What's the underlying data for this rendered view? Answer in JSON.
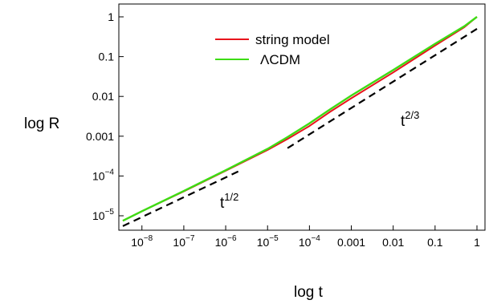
{
  "chart_data": {
    "type": "line",
    "title": "",
    "xlabel": "log t",
    "ylabel": "log R",
    "xscale": "log",
    "yscale": "log",
    "xlim": [
      3e-09,
      1.2
    ],
    "ylim": [
      5e-06,
      1.5
    ],
    "grid": false,
    "legend_position": "top-center",
    "x_ticks": [
      {
        "value": 1e-08,
        "base": "10",
        "exp": "−8"
      },
      {
        "value": 1e-07,
        "base": "10",
        "exp": "−7"
      },
      {
        "value": 1e-06,
        "base": "10",
        "exp": "−6"
      },
      {
        "value": 1e-05,
        "base": "10",
        "exp": "−5"
      },
      {
        "value": 0.0001,
        "base": "10",
        "exp": "−4"
      },
      {
        "value": 0.001,
        "base": "0.001",
        "exp": ""
      },
      {
        "value": 0.01,
        "base": "0.01",
        "exp": ""
      },
      {
        "value": 0.1,
        "base": "0.1",
        "exp": ""
      },
      {
        "value": 1,
        "base": "1",
        "exp": ""
      }
    ],
    "y_ticks": [
      {
        "value": 1,
        "base": "1",
        "exp": ""
      },
      {
        "value": 0.1,
        "base": "0.1",
        "exp": ""
      },
      {
        "value": 0.01,
        "base": "0.01",
        "exp": ""
      },
      {
        "value": 0.001,
        "base": "0.001",
        "exp": ""
      },
      {
        "value": 0.0001,
        "base": "10",
        "exp": "−4"
      },
      {
        "value": 1e-05,
        "base": "10",
        "exp": "−5"
      }
    ],
    "series": [
      {
        "name": "string model",
        "color": "#e8141c",
        "style": "solid",
        "x": [
          3.5e-09,
          1e-08,
          1e-07,
          1e-06,
          1e-05,
          3e-05,
          0.0001,
          0.0003,
          0.001,
          0.01,
          0.1,
          0.5,
          1
        ],
        "y": [
          7.5e-06,
          1.3e-05,
          4.1e-05,
          0.000135,
          0.00045,
          0.00085,
          0.0018,
          0.004,
          0.009,
          0.04,
          0.19,
          0.55,
          1.0
        ]
      },
      {
        "name": "ΛCDM",
        "color": "#3ddc14",
        "style": "solid",
        "x": [
          3.5e-09,
          1e-08,
          1e-07,
          1e-06,
          1e-05,
          3e-05,
          0.0001,
          0.0003,
          0.001,
          0.01,
          0.1,
          0.5,
          1
        ],
        "y": [
          7.5e-06,
          1.3e-05,
          4.2e-05,
          0.00014,
          0.00048,
          0.00095,
          0.0021,
          0.0046,
          0.0105,
          0.046,
          0.21,
          0.58,
          1.0
        ]
      }
    ],
    "reference_lines": [
      {
        "label_base": "t",
        "label_exp": "1/2",
        "slope": 0.5,
        "x": [
          3.5e-09,
          2e-06
        ],
        "y": [
          5.5e-06,
          0.00013
        ]
      },
      {
        "label_base": "t",
        "label_exp": "2/3",
        "slope": 0.6667,
        "x": [
          3e-05,
          1
        ],
        "y": [
          0.0005,
          0.5
        ]
      }
    ]
  }
}
